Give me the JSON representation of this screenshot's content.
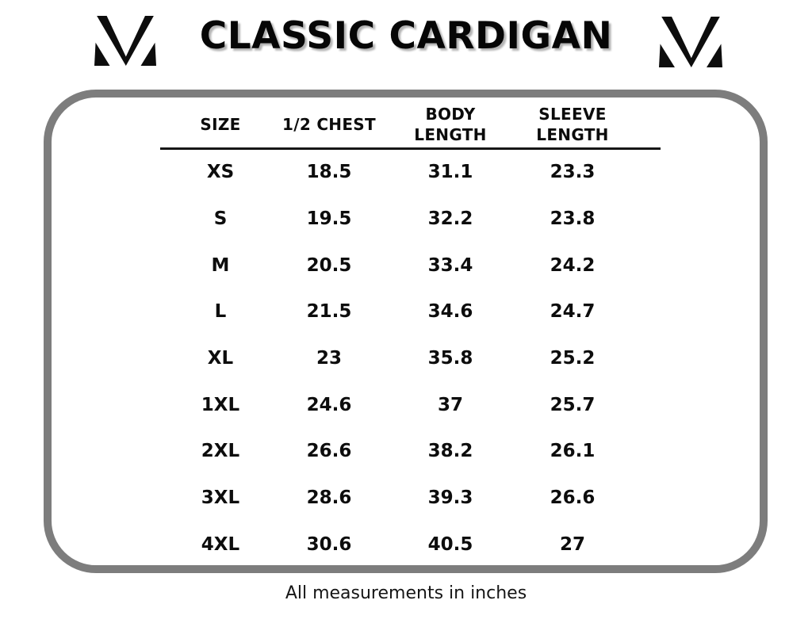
{
  "header": {
    "title": "CLASSIC CARDIGAN"
  },
  "chart_data": {
    "type": "table",
    "title": "CLASSIC CARDIGAN",
    "columns": [
      "SIZE",
      "1/2 CHEST",
      "BODY LENGTH",
      "SLEEVE LENGTH"
    ],
    "column_lines": [
      [
        "SIZE"
      ],
      [
        "1/2 CHEST"
      ],
      [
        "BODY",
        "LENGTH"
      ],
      [
        "SLEEVE",
        "LENGTH"
      ]
    ],
    "rows": [
      [
        "XS",
        "18.5",
        "31.1",
        "23.3"
      ],
      [
        "S",
        "19.5",
        "32.2",
        "23.8"
      ],
      [
        "M",
        "20.5",
        "33.4",
        "24.2"
      ],
      [
        "L",
        "21.5",
        "34.6",
        "24.7"
      ],
      [
        "XL",
        "23",
        "35.8",
        "25.2"
      ],
      [
        "1XL",
        "24.6",
        "37",
        "25.7"
      ],
      [
        "2XL",
        "26.6",
        "38.2",
        "26.1"
      ],
      [
        "3XL",
        "28.6",
        "39.3",
        "26.6"
      ],
      [
        "4XL",
        "30.6",
        "40.5",
        "27"
      ]
    ],
    "footnote": "All measurements in inches"
  },
  "footer": {
    "note": "All measurements in inches"
  },
  "colors": {
    "panel_border": "#7d7d7d",
    "text": "#0d0d0d",
    "title_shadow": "#b3b3b3",
    "header_rule": "#161616"
  }
}
